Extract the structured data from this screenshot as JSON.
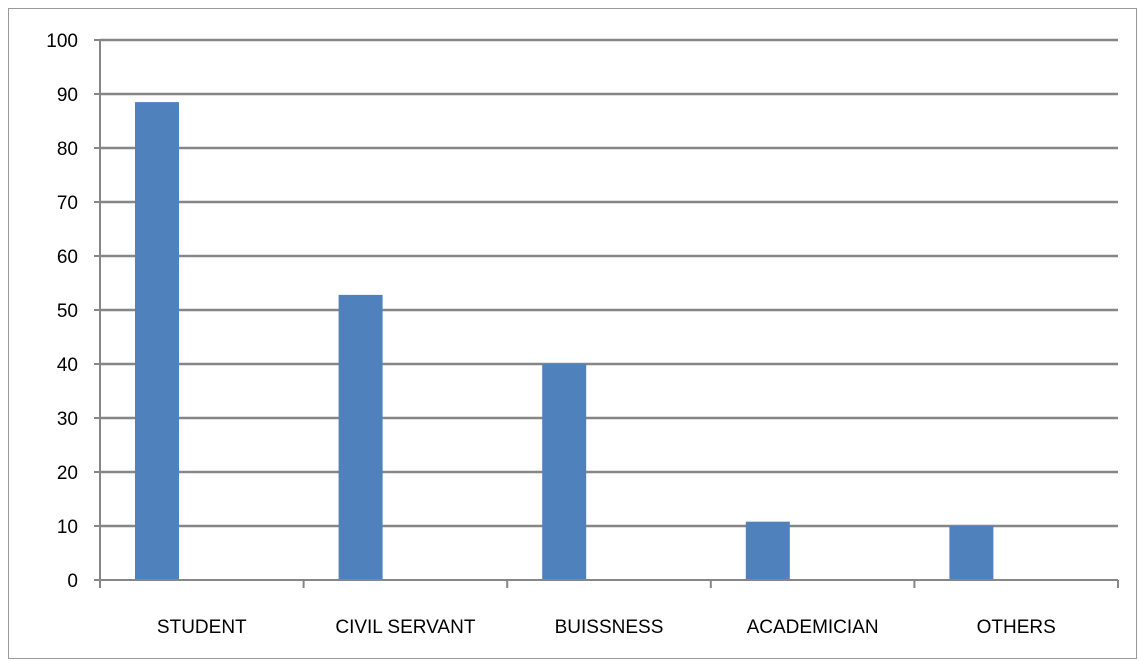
{
  "chart_data": {
    "type": "bar",
    "title": "",
    "xlabel": "",
    "ylabel": "",
    "categories": [
      "STUDENT",
      "CIVIL SERVANT",
      "BUISSNESS",
      "ACADEMICIAN",
      "OTHERS"
    ],
    "values": [
      88.5,
      52.8,
      40,
      10.8,
      10
    ],
    "ylim": [
      0,
      100
    ],
    "yticks": [
      0,
      10,
      20,
      30,
      40,
      50,
      60,
      70,
      80,
      90,
      100
    ],
    "grid": true,
    "legend": "none",
    "colors": {
      "bar": "#4f81bd",
      "grid": "#868686",
      "axis": "#868686",
      "text": "#000000"
    }
  }
}
